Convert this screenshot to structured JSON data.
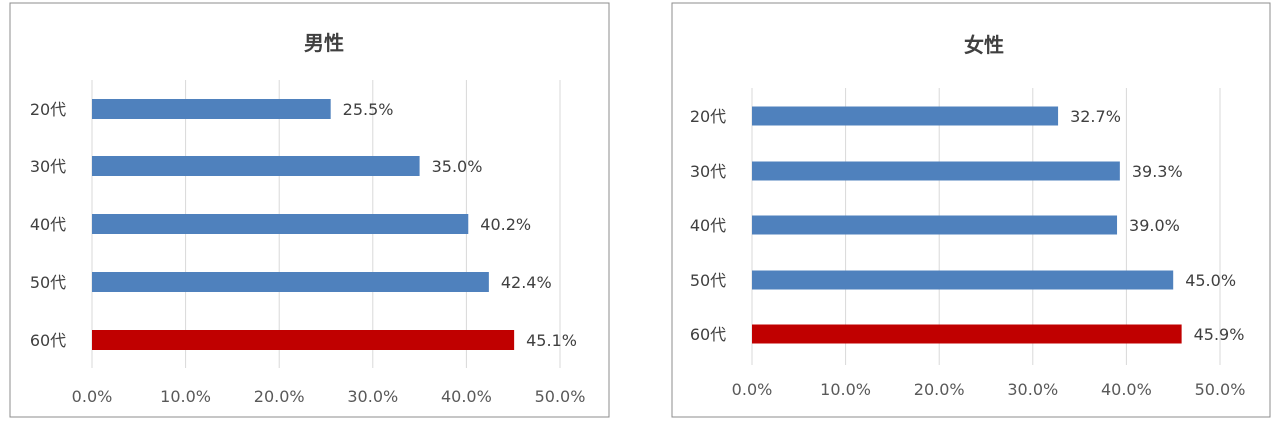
{
  "chart_data": [
    {
      "type": "bar",
      "orientation": "horizontal",
      "title": "男性",
      "categories": [
        "20代",
        "30代",
        "40代",
        "50代",
        "60代"
      ],
      "values": [
        25.5,
        35.0,
        40.2,
        42.4,
        45.1
      ],
      "value_labels": [
        "25.5%",
        "35.0%",
        "40.2%",
        "42.4%",
        "45.1%"
      ],
      "xlim": [
        0,
        50
      ],
      "xticks": [
        "0.0%",
        "10.0%",
        "20.0%",
        "30.0%",
        "40.0%",
        "50.0%"
      ],
      "grid": "vertical",
      "colors": {
        "default": "#4f81bd",
        "highlight": "#c00000"
      },
      "highlight_category": "60代"
    },
    {
      "type": "bar",
      "orientation": "horizontal",
      "title": "女性",
      "categories": [
        "20代",
        "30代",
        "40代",
        "50代",
        "60代"
      ],
      "values": [
        32.7,
        39.3,
        39.0,
        45.0,
        45.9
      ],
      "value_labels": [
        "32.7%",
        "39.3%",
        "39.0%",
        "45.0%",
        "45.9%"
      ],
      "xlim": [
        0,
        50
      ],
      "xticks": [
        "0.0%",
        "10.0%",
        "20.0%",
        "30.0%",
        "40.0%",
        "50.0%"
      ],
      "grid": "vertical",
      "colors": {
        "default": "#4f81bd",
        "highlight": "#c00000"
      },
      "highlight_category": "60代"
    }
  ]
}
